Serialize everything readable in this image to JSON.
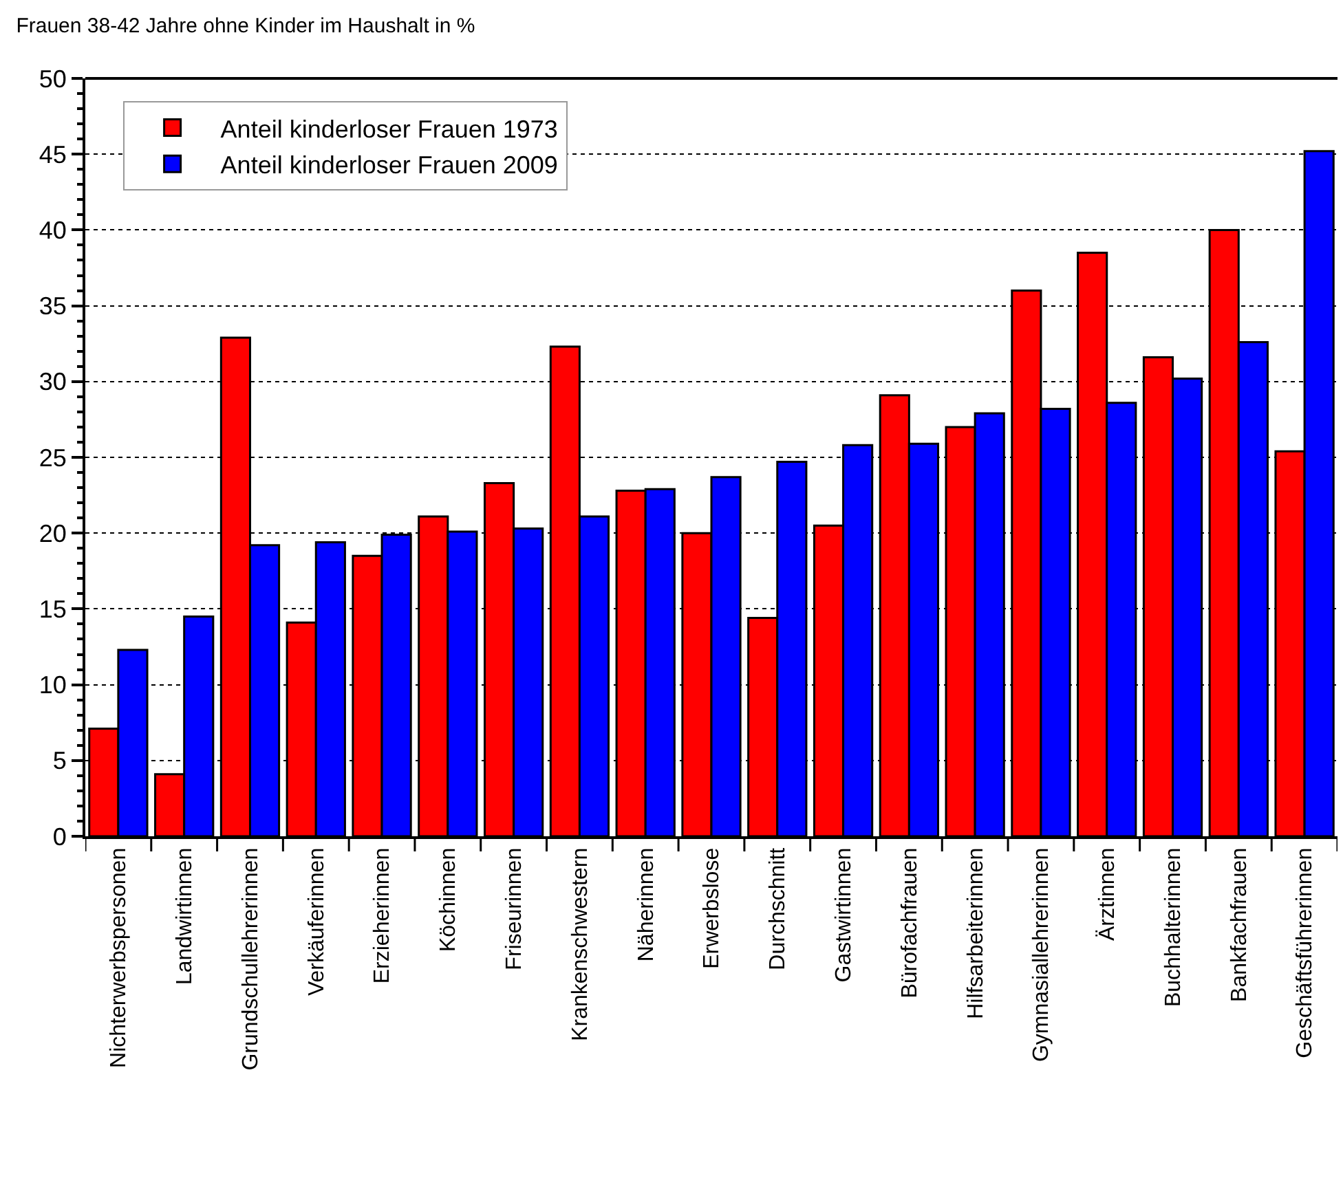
{
  "chart_data": {
    "type": "bar",
    "title": "Frauen 38-42 Jahre ohne Kinder im Haushalt in %",
    "categories": [
      "Nichterwerbspersonen",
      "Landwirtinnen",
      "Grundschullehrerinnen",
      "Verkäuferinnen",
      "Erzieherinnen",
      "Köchinnen",
      "Friseurinnen",
      "Krankenschwestern",
      "Näherinnen",
      "Erwerbslose",
      "Durchschnitt",
      "Gastwirtinnen",
      "Bürofachfrauen",
      "Hilfsarbeiterinnen",
      "Gymnasiallehrerinnen",
      "Ärztinnen",
      "Buchhalterinnen",
      "Bankfachfrauen",
      "Geschäftsführerinnen"
    ],
    "series": [
      {
        "name": "Anteil kinderloser Frauen 1973",
        "color": "#ff0000",
        "values": [
          7.1,
          4.1,
          32.9,
          14.1,
          18.5,
          21.1,
          23.3,
          32.3,
          22.8,
          20.0,
          14.4,
          20.5,
          29.1,
          27.0,
          36.0,
          38.5,
          31.6,
          40.0,
          25.4
        ]
      },
      {
        "name": "Anteil kinderloser Frauen 2009",
        "color": "#0000ff",
        "values": [
          12.3,
          14.5,
          19.2,
          19.4,
          19.9,
          20.1,
          20.3,
          21.1,
          22.9,
          23.7,
          24.7,
          25.8,
          25.9,
          27.9,
          28.2,
          28.6,
          30.2,
          32.6,
          45.2
        ]
      }
    ],
    "ylim": [
      0,
      50
    ],
    "yticks": [
      0,
      5,
      10,
      15,
      20,
      25,
      30,
      35,
      40,
      45,
      50
    ],
    "grid": "y",
    "legend": "top left"
  }
}
